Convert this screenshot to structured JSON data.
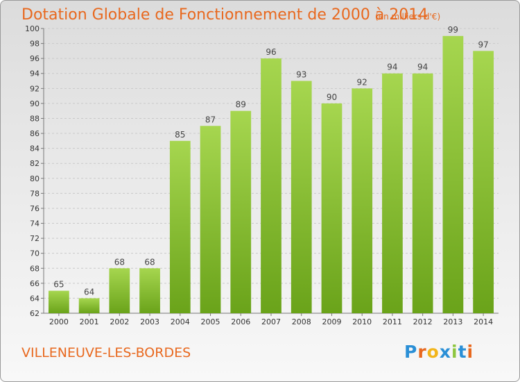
{
  "header": {
    "title": "Dotation Globale de Fonctionnement de 2000 à 2014",
    "subtitle": "(en milliers d'€)"
  },
  "footer": {
    "commune": "VILLENEUVE-LES-BORDES",
    "logo": [
      "P",
      "r",
      "o",
      "x",
      "i",
      "t",
      "i"
    ]
  },
  "colors": {
    "title": "#e8681e",
    "bar_light": "#a6d64f",
    "bar_dark": "#6aa31a",
    "logo": [
      "#2a8fd6",
      "#e8681e",
      "#f2b51a",
      "#2a8fd6",
      "#8dc63f",
      "#2a8fd6",
      "#e8681e"
    ]
  },
  "chart_data": {
    "type": "bar",
    "title": "Dotation Globale de Fonctionnement de 2000 à 2014",
    "subtitle": "(en milliers d'€)",
    "categories": [
      "2000",
      "2001",
      "2002",
      "2003",
      "2004",
      "2005",
      "2006",
      "2007",
      "2008",
      "2009",
      "2010",
      "2011",
      "2012",
      "2013",
      "2014"
    ],
    "values": [
      65,
      64,
      68,
      68,
      85,
      87,
      89,
      96,
      93,
      90,
      92,
      94,
      94,
      99,
      97
    ],
    "ylim": [
      62,
      100
    ],
    "yticks": [
      62,
      64,
      66,
      68,
      70,
      72,
      74,
      76,
      78,
      80,
      82,
      84,
      86,
      88,
      90,
      92,
      94,
      96,
      98,
      100
    ],
    "grid": true,
    "xlabel": "",
    "ylabel": ""
  }
}
